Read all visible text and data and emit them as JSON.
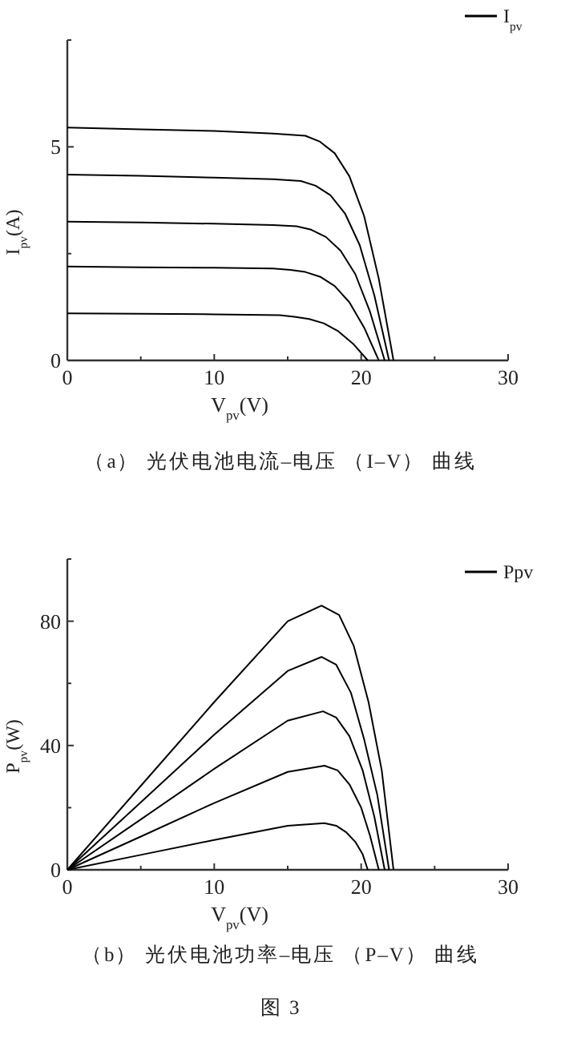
{
  "chart_data": [
    {
      "type": "line",
      "xlabel": "V$_{pv}$(V)",
      "ylabel": "I$_{pv}$(A)",
      "xlim": [
        0,
        30
      ],
      "ylim": [
        0,
        7.5
      ],
      "xticks": [
        0,
        {
          "value": 5,
          "label": null
        },
        10,
        {
          "value": 15,
          "label": null
        },
        20,
        {
          "value": 25,
          "label": null
        },
        30
      ],
      "yticks": [
        0,
        {
          "value": 2.5,
          "label": null
        },
        5,
        {
          "value": 7.5,
          "label": null
        }
      ],
      "legend": "top right",
      "marker": "none",
      "line_style": "solid",
      "grid": false,
      "annotations": [
        "（a） 光伏电池电流–电压 （I–V） 曲线"
      ],
      "series": [
        {
          "name": "I$_{pv}$",
          "color": "#000000",
          "x": [
            0,
            5,
            10,
            14,
            16.2,
            17.2,
            18.2,
            19.2,
            20.2,
            21.2,
            22.2
          ],
          "values": [
            5.45,
            5.41,
            5.37,
            5.31,
            5.26,
            5.12,
            4.85,
            4.31,
            3.38,
            1.91,
            0
          ]
        },
        {
          "color": "#000000",
          "x": [
            0,
            5,
            10,
            14,
            15.9,
            16.9,
            17.9,
            18.9,
            19.9,
            20.9,
            21.9
          ],
          "values": [
            4.35,
            4.32,
            4.28,
            4.24,
            4.2,
            4.09,
            3.87,
            3.44,
            2.7,
            1.52,
            0
          ]
        },
        {
          "color": "#000000",
          "x": [
            0,
            5,
            10,
            14,
            15.6,
            16.6,
            17.6,
            18.6,
            19.6,
            20.6,
            21.6
          ],
          "values": [
            3.25,
            3.23,
            3.2,
            3.17,
            3.14,
            3.06,
            2.89,
            2.57,
            2.02,
            1.14,
            0
          ]
        },
        {
          "color": "#000000",
          "x": [
            0,
            5,
            10,
            14,
            15.2,
            16.2,
            17.2,
            18.2,
            19.2,
            20.2,
            21.2
          ],
          "values": [
            2.2,
            2.18,
            2.17,
            2.15,
            2.12,
            2.07,
            1.96,
            1.74,
            1.36,
            0.77,
            0
          ]
        },
        {
          "color": "#000000",
          "x": [
            0,
            5,
            10,
            14.45,
            15.45,
            16.45,
            17.45,
            18.45,
            19.45,
            20.45
          ],
          "values": [
            1.1,
            1.09,
            1.08,
            1.06,
            1.02,
            0.97,
            0.87,
            0.68,
            0.39,
            0
          ]
        }
      ]
    },
    {
      "type": "line",
      "xlabel": "V$_{pv}$(V)",
      "ylabel": "P$_{pv}$(W)",
      "xlim": [
        0,
        30
      ],
      "ylim": [
        0,
        100
      ],
      "xticks": [
        0,
        {
          "value": 5,
          "label": null
        },
        10,
        {
          "value": 15,
          "label": null
        },
        20,
        {
          "value": 25,
          "label": null
        },
        30
      ],
      "yticks": [
        0,
        {
          "value": 20,
          "label": null
        },
        40,
        {
          "value": 60,
          "label": null
        },
        80,
        {
          "value": 100,
          "label": null
        }
      ],
      "legend": "top right",
      "marker": "none",
      "line_style": "solid",
      "grid": false,
      "annotations": [
        "（b） 光伏电池功率–电压 （P–V） 曲线",
        "图 3"
      ],
      "series": [
        {
          "name": "Ppv",
          "color": "#000000",
          "x": [
            0,
            5,
            10,
            15,
            17.3,
            18.5,
            19.5,
            20.5,
            21.4,
            22.2
          ],
          "values": [
            0,
            27,
            54,
            80,
            85,
            82,
            72,
            54,
            32,
            0
          ]
        },
        {
          "color": "#000000",
          "x": [
            0,
            5,
            10,
            15,
            17.3,
            18.3,
            19.3,
            20.2,
            21.1,
            21.9
          ],
          "values": [
            0,
            21.7,
            43.5,
            64,
            68.5,
            66,
            57,
            42,
            24,
            0
          ]
        },
        {
          "color": "#000000",
          "x": [
            0,
            5,
            10,
            15,
            17.4,
            18.3,
            19.2,
            20.1,
            20.9,
            21.6
          ],
          "values": [
            0,
            16.2,
            32.5,
            48,
            51,
            49,
            43,
            32,
            17,
            0
          ]
        },
        {
          "color": "#000000",
          "x": [
            0,
            5,
            10,
            15,
            17.5,
            18.4,
            19.2,
            20,
            20.6,
            21.2
          ],
          "values": [
            0,
            10.7,
            21.5,
            31.5,
            33.5,
            32,
            27.5,
            20,
            11,
            0
          ]
        },
        {
          "color": "#000000",
          "x": [
            0,
            5,
            10,
            15,
            17.5,
            18.3,
            19,
            19.6,
            20.1,
            20.45
          ],
          "values": [
            0,
            4.8,
            9.6,
            14.2,
            15,
            14.2,
            12,
            9,
            5,
            0
          ]
        }
      ]
    }
  ]
}
